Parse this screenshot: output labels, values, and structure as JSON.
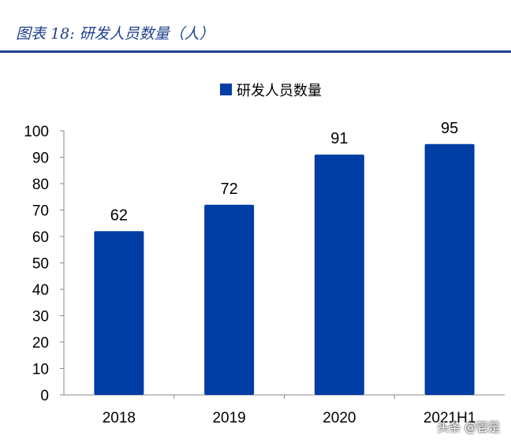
{
  "header": {
    "title": "图表 18:  研发人员数量（人）"
  },
  "colors": {
    "bar": "#003da5",
    "rule": "#1f3f8f",
    "axis": "#888888",
    "text": "#000000"
  },
  "watermark": {
    "text": "头条 @管是"
  },
  "chart_data": {
    "type": "bar",
    "categories": [
      "2018",
      "2019",
      "2020",
      "2021H1"
    ],
    "series": [
      {
        "name": "研发人员数量",
        "values": [
          62,
          72,
          91,
          95
        ]
      }
    ],
    "data_labels": [
      "62",
      "72",
      "91",
      "95"
    ],
    "yticks": [
      0,
      10,
      20,
      30,
      40,
      50,
      60,
      70,
      80,
      90,
      100
    ],
    "ylim": [
      0,
      100
    ],
    "legend_position": "top-center",
    "grid": false
  }
}
